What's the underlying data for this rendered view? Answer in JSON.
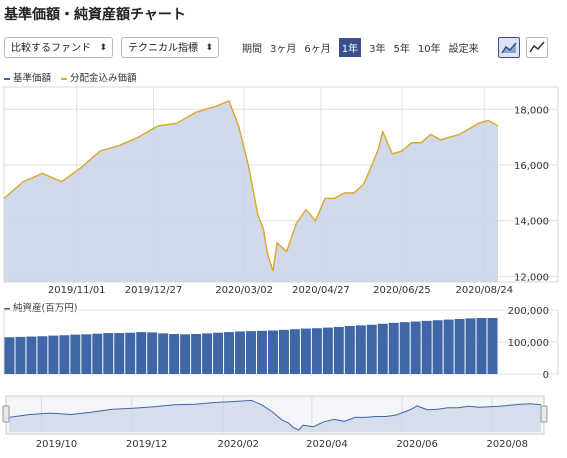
{
  "title": "基準価額・純資産額チャート",
  "controls": {
    "compare_select": "比較するファンド",
    "indicator_select": "テクニカル指標",
    "period_label": "期間",
    "periods": [
      "3ヶ月",
      "6ヶ月",
      "1年",
      "3年",
      "5年",
      "10年",
      "設定来"
    ],
    "active_period": "1年",
    "view_icons": [
      "area-chart-icon",
      "line-chart-icon"
    ]
  },
  "colors": {
    "nav_line": "#3f67a8",
    "dist_line": "#e1a82b",
    "area_fill": "#c9d4e6",
    "volume_bar": "#3f67a8",
    "active": "#3a4f8c"
  },
  "chart_data": [
    {
      "type": "area",
      "legend": [
        "基準価額",
        "分配金込み価額"
      ],
      "x_tick_labels": [
        "2019/11/01",
        "2019/12/27",
        "2020/03/02",
        "2020/04/27",
        "2020/06/25",
        "2020/08/24"
      ],
      "y_tick_labels": [
        "12,000",
        "14,000",
        "16,000",
        "18,000"
      ],
      "ylim": [
        11800,
        18800
      ],
      "grid": true,
      "series": [
        {
          "name": "基準価額",
          "x": [
            "2019/09/09",
            "2019/09/23",
            "2019/10/07",
            "2019/10/21",
            "2019/11/04",
            "2019/11/18",
            "2019/12/02",
            "2019/12/16",
            "2019/12/30",
            "2020/01/13",
            "2020/01/27",
            "2020/02/10",
            "2020/02/20",
            "2020/02/27",
            "2020/03/05",
            "2020/03/12",
            "2020/03/16",
            "2020/03/19",
            "2020/03/23",
            "2020/03/26",
            "2020/04/02",
            "2020/04/09",
            "2020/04/16",
            "2020/04/23",
            "2020/04/30",
            "2020/05/07",
            "2020/05/14",
            "2020/05/21",
            "2020/05/28",
            "2020/06/04",
            "2020/06/08",
            "2020/06/11",
            "2020/06/18",
            "2020/06/25",
            "2020/07/02",
            "2020/07/09",
            "2020/07/16",
            "2020/07/23",
            "2020/07/30",
            "2020/08/06",
            "2020/08/13",
            "2020/08/20",
            "2020/08/27",
            "2020/09/03"
          ],
          "y": [
            14800,
            15400,
            15700,
            15400,
            15900,
            16500,
            16700,
            17000,
            17400,
            17500,
            17900,
            18100,
            18300,
            17400,
            16000,
            14200,
            13700,
            12800,
            12200,
            13200,
            12900,
            13900,
            14400,
            14000,
            14800,
            14800,
            15000,
            15000,
            15300,
            16100,
            16600,
            17200,
            16400,
            16500,
            16800,
            16800,
            17100,
            16900,
            17000,
            17100,
            17300,
            17500,
            17600,
            17400
          ]
        }
      ]
    },
    {
      "type": "bar",
      "title": "純資産(百万円)",
      "y_tick_labels": [
        "0",
        "100,000",
        "200,000"
      ],
      "ylim": [
        0,
        200000
      ],
      "values": [
        115000,
        116000,
        117000,
        118000,
        120000,
        121000,
        123000,
        124000,
        126000,
        128000,
        128000,
        129000,
        131000,
        130000,
        127000,
        125000,
        124000,
        125000,
        127000,
        129000,
        131000,
        133000,
        134000,
        135000,
        136000,
        138000,
        140000,
        142000,
        143000,
        145000,
        147000,
        150000,
        152000,
        154000,
        157000,
        160000,
        162000,
        164000,
        166000,
        168000,
        170000,
        172000,
        174000,
        175000,
        175000
      ]
    },
    {
      "type": "area",
      "x_tick_labels": [
        "2019/10",
        "2019/12",
        "2020/02",
        "2020/04",
        "2020/06",
        "2020/08"
      ]
    }
  ]
}
